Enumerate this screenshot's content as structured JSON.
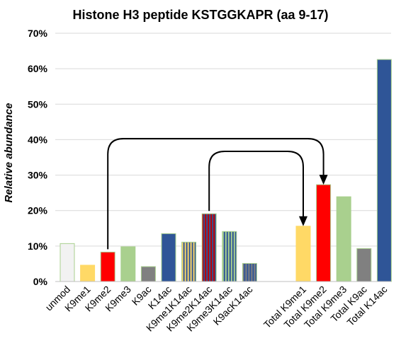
{
  "chart_data": {
    "type": "bar",
    "title": "Histone H3 peptide KSTGGKAPR (aa 9-17)",
    "ylabel": "Relative abundance",
    "xlabel": "",
    "ylim": [
      0,
      70
    ],
    "yticks": [
      "0%",
      "10%",
      "20%",
      "30%",
      "40%",
      "50%",
      "60%",
      "70%"
    ],
    "grid": true,
    "legend": "none",
    "groups": [
      {
        "bars": [
          {
            "label": "unmod",
            "value": 10.7,
            "fill": "#f2f2f2",
            "stroke": "#a9d08e",
            "pattern": "none"
          },
          {
            "label": "K9me1",
            "value": 4.6,
            "fill": "#ffd966",
            "stroke": "#ffd966",
            "pattern": "none"
          },
          {
            "label": "K9me2",
            "value": 8.3,
            "fill": "#ff0000",
            "stroke": "#a9d08e",
            "pattern": "none"
          },
          {
            "label": "K9me3",
            "value": 9.8,
            "fill": "#a9d08e",
            "stroke": "#a9d08e",
            "pattern": "none"
          },
          {
            "label": "K9ac",
            "value": 4.2,
            "fill": "#808080",
            "stroke": "#a9d08e",
            "pattern": "none"
          },
          {
            "label": "K14ac",
            "value": 13.5,
            "fill": "#2f5597",
            "stroke": "#a9d08e",
            "pattern": "none"
          },
          {
            "label": "K9me1K14ac",
            "value": 11.1,
            "fill": "#ffd966",
            "stroke": "#a9d08e",
            "pattern": "stripes",
            "stripe": "#2f5597"
          },
          {
            "label": "K9me2K14ac",
            "value": 19.1,
            "fill": "#c00000",
            "stroke": "#a9d08e",
            "pattern": "stripes",
            "stripe": "#2f5597"
          },
          {
            "label": "K9me3K14ac",
            "value": 14.1,
            "fill": "#a9d08e",
            "stroke": "#a9d08e",
            "pattern": "stripes",
            "stripe": "#2f5597"
          },
          {
            "label": "K9acK14ac",
            "value": 5.1,
            "fill": "#808080",
            "stroke": "#a9d08e",
            "pattern": "stripes",
            "stripe": "#2f5597"
          }
        ]
      },
      {
        "bars": [
          {
            "label": "Total K9me1",
            "value": 15.6,
            "fill": "#ffd966",
            "stroke": "#ffd966",
            "pattern": "none"
          },
          {
            "label": "Total K9me2",
            "value": 27.3,
            "fill": "#ff0000",
            "stroke": "#a9d08e",
            "pattern": "none"
          },
          {
            "label": "Total K9me3",
            "value": 23.9,
            "fill": "#a9d08e",
            "stroke": "#a9d08e",
            "pattern": "none"
          },
          {
            "label": "Total K9ac",
            "value": 9.3,
            "fill": "#808080",
            "stroke": "#a9d08e",
            "pattern": "none"
          },
          {
            "label": "Total K14ac",
            "value": 62.6,
            "fill": "#2f5597",
            "stroke": "#a9d08e",
            "pattern": "none"
          }
        ]
      }
    ],
    "annotations": [
      {
        "type": "arrow",
        "from": "K9me2",
        "to": "Total K9me2"
      },
      {
        "type": "arrow",
        "from": "K9me2K14ac",
        "to": "Total K9me1"
      }
    ]
  }
}
